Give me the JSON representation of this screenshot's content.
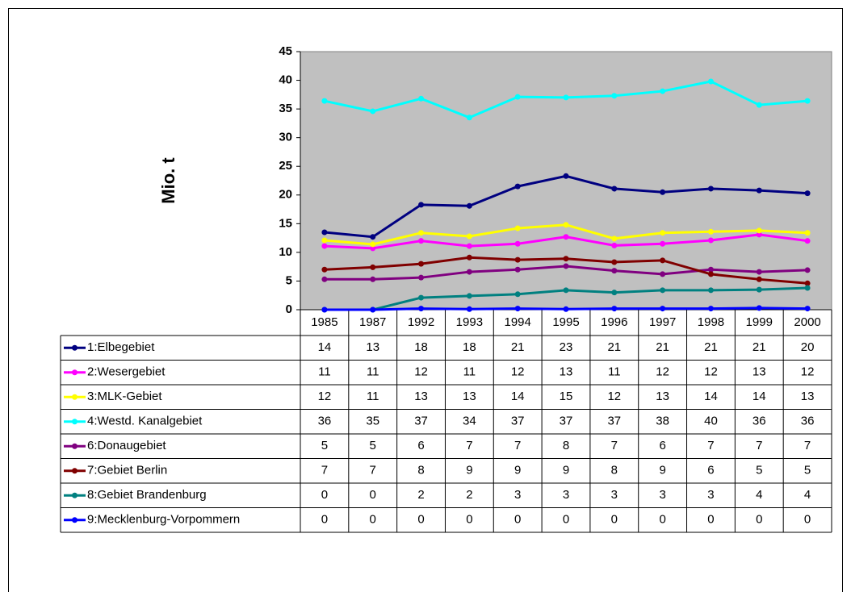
{
  "chart_data": {
    "type": "line",
    "y_label": "Mio. t",
    "categories": [
      "1985",
      "1987",
      "1992",
      "1993",
      "1994",
      "1995",
      "1996",
      "1997",
      "1998",
      "1999",
      "2000"
    ],
    "ylim": [
      0,
      45
    ],
    "yticks": [
      0,
      5,
      10,
      15,
      20,
      25,
      30,
      35,
      40,
      45
    ],
    "plot_background": "#c0c0c0",
    "series": [
      {
        "name": "1:Elbegebiet",
        "color": "#000080",
        "values": [
          13.5,
          12.7,
          18.3,
          18.1,
          21.5,
          23.3,
          21.1,
          20.5,
          21.1,
          20.8,
          20.3
        ],
        "value_labels": [
          "14",
          "13",
          "18",
          "18",
          "21",
          "23",
          "21",
          "21",
          "21",
          "21",
          "20"
        ]
      },
      {
        "name": "2:Wesergebiet",
        "color": "#ff00ff",
        "values": [
          11.1,
          10.7,
          12.0,
          11.1,
          11.5,
          12.7,
          11.2,
          11.5,
          12.1,
          13.1,
          12.0
        ],
        "value_labels": [
          "11",
          "11",
          "12",
          "11",
          "12",
          "13",
          "11",
          "12",
          "12",
          "13",
          "12"
        ]
      },
      {
        "name": "3:MLK-Gebiet",
        "color": "#ffff00",
        "values": [
          12.1,
          11.4,
          13.4,
          12.8,
          14.2,
          14.8,
          12.4,
          13.4,
          13.6,
          13.8,
          13.4
        ],
        "value_labels": [
          "12",
          "11",
          "13",
          "13",
          "14",
          "15",
          "12",
          "13",
          "14",
          "14",
          "13"
        ]
      },
      {
        "name": "4:Westd. Kanalgebiet",
        "color": "#00ffff",
        "values": [
          36.4,
          34.6,
          36.8,
          33.5,
          37.1,
          37.0,
          37.3,
          38.1,
          39.8,
          35.7,
          36.4
        ],
        "value_labels": [
          "36",
          "35",
          "37",
          "34",
          "37",
          "37",
          "37",
          "38",
          "40",
          "36",
          "36"
        ]
      },
      {
        "name": "6:Donaugebiet",
        "color": "#800080",
        "values": [
          5.3,
          5.3,
          5.6,
          6.6,
          7.0,
          7.6,
          6.8,
          6.2,
          7.0,
          6.6,
          6.9
        ],
        "value_labels": [
          "5",
          "5",
          "6",
          "7",
          "7",
          "8",
          "7",
          "6",
          "7",
          "7",
          "7"
        ]
      },
      {
        "name": "7:Gebiet Berlin",
        "color": "#800000",
        "values": [
          7.0,
          7.4,
          8.0,
          9.1,
          8.7,
          8.9,
          8.3,
          8.6,
          6.2,
          5.3,
          4.6
        ],
        "value_labels": [
          "7",
          "7",
          "8",
          "9",
          "9",
          "9",
          "8",
          "9",
          "6",
          "5",
          "5"
        ]
      },
      {
        "name": "8:Gebiet Brandenburg",
        "color": "#008080",
        "values": [
          0,
          0,
          2.1,
          2.4,
          2.7,
          3.4,
          3.0,
          3.4,
          3.4,
          3.5,
          3.8
        ],
        "value_labels": [
          "0",
          "0",
          "2",
          "2",
          "3",
          "3",
          "3",
          "3",
          "3",
          "4",
          "4"
        ]
      },
      {
        "name": "9:Mecklenburg-Vorpommern",
        "color": "#0000ff",
        "values": [
          0,
          0,
          0.2,
          0.1,
          0.2,
          0.1,
          0.2,
          0.2,
          0.2,
          0.3,
          0.2
        ],
        "value_labels": [
          "0",
          "0",
          "0",
          "0",
          "0",
          "0",
          "0",
          "0",
          "0",
          "0",
          "0"
        ]
      }
    ]
  }
}
